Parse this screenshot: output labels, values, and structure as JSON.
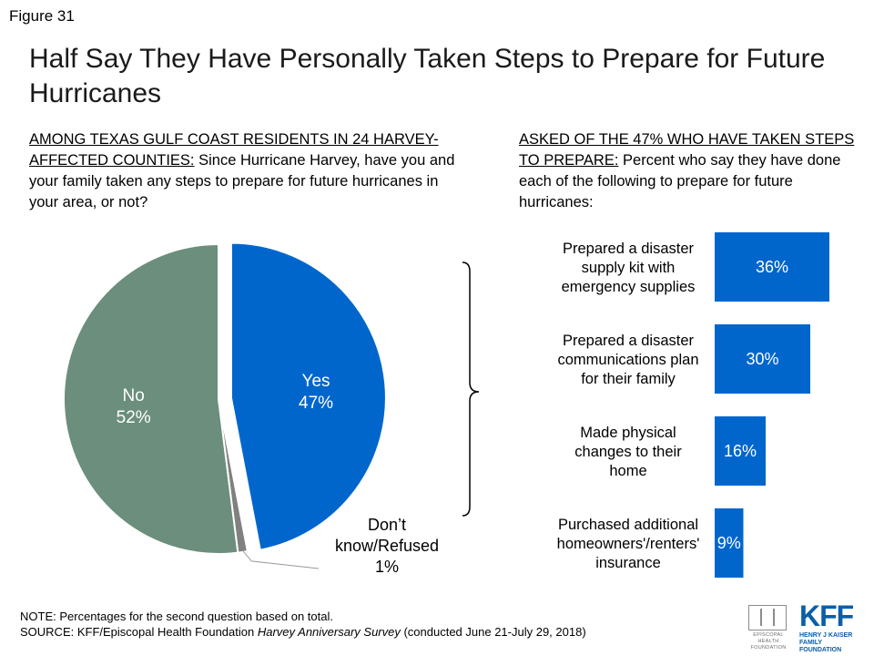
{
  "figure_label": "Figure 31",
  "title": "Half Say They Have Personally Taken Steps to Prepare for Future Hurricanes",
  "left_question": {
    "lead": "AMONG TEXAS GULF COAST RESIDENTS IN 24 HARVEY-AFFECTED COUNTIES:",
    "text": "Since Hurricane Harvey, have you and your family taken any steps to prepare for future hurricanes in your area, or not?"
  },
  "right_question": {
    "lead": "ASKED OF THE 47% WHO HAVE TAKEN STEPS TO PREPARE:",
    "text": "Percent who say they have done each of the following to prepare for future hurricanes:"
  },
  "colors": {
    "yes": "#0066cc",
    "no": "#6b8e7d",
    "dont_know": "#808080",
    "bar": "#0066cc"
  },
  "chart_data": [
    {
      "type": "pie",
      "slices": [
        {
          "label": "Yes",
          "value_label": "47%",
          "value": 47,
          "exploded": true
        },
        {
          "label": "Don’t know/Refused",
          "value_label": "1%",
          "value": 1,
          "exploded": false
        },
        {
          "label": "No",
          "value_label": "52%",
          "value": 52,
          "exploded": false
        }
      ]
    },
    {
      "type": "bar",
      "orientation": "horizontal",
      "xlim": [
        0,
        36
      ],
      "categories": [
        "Prepared a disaster supply kit with emergency supplies",
        "Prepared a disaster communications plan for their family",
        "Made physical changes to their home",
        "Purchased additional homeowners'/renters' insurance"
      ],
      "category_lines": [
        [
          "Prepared a disaster",
          "supply kit with",
          "emergency supplies"
        ],
        [
          "Prepared a disaster",
          "communications plan",
          "for their family"
        ],
        [
          "Made physical",
          "changes to their",
          "home"
        ],
        [
          "Purchased additional",
          "homeowners'/renters'",
          "insurance"
        ]
      ],
      "values": [
        36,
        30,
        16,
        9
      ],
      "value_labels": [
        "36%",
        "30%",
        "16%",
        "9%"
      ]
    }
  ],
  "footer": {
    "note": "NOTE: Percentages for the second question based on total.",
    "source_prefix": "SOURCE: KFF/Episcopal Health Foundation ",
    "source_title": "Harvey Anniversary Survey",
    "source_suffix": " (conducted June 21-July 29, 2018)"
  },
  "logos": {
    "ehf_text": "EPISCOPAL HEALTH FOUNDATION",
    "kff_text": "KFF",
    "kff_sub": "HENRY J KAISER FAMILY FOUNDATION"
  }
}
